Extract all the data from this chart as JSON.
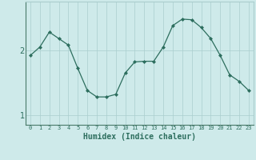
{
  "xlabel": "Humidex (Indice chaleur)",
  "ylabel": "",
  "x_values": [
    0,
    1,
    2,
    3,
    4,
    5,
    6,
    7,
    8,
    9,
    10,
    11,
    12,
    13,
    14,
    15,
    16,
    17,
    18,
    19,
    20,
    21,
    22,
    23
  ],
  "y_values": [
    1.92,
    2.05,
    2.28,
    2.18,
    2.08,
    1.72,
    1.38,
    1.28,
    1.28,
    1.32,
    1.65,
    1.82,
    1.83,
    1.83,
    2.05,
    2.38,
    2.48,
    2.47,
    2.35,
    2.18,
    1.92,
    1.62,
    1.52,
    1.38
  ],
  "line_color": "#2d6e5e",
  "bg_color": "#ceeaea",
  "grid_color": "#aacece",
  "tick_color": "#2d6e5e",
  "label_color": "#2d6e5e",
  "yticks": [
    1,
    2
  ],
  "ylim": [
    0.85,
    2.75
  ],
  "xlim": [
    -0.5,
    23.5
  ],
  "title_fontsize": 7,
  "label_fontsize": 7,
  "xtick_fontsize": 5,
  "ytick_fontsize": 7
}
